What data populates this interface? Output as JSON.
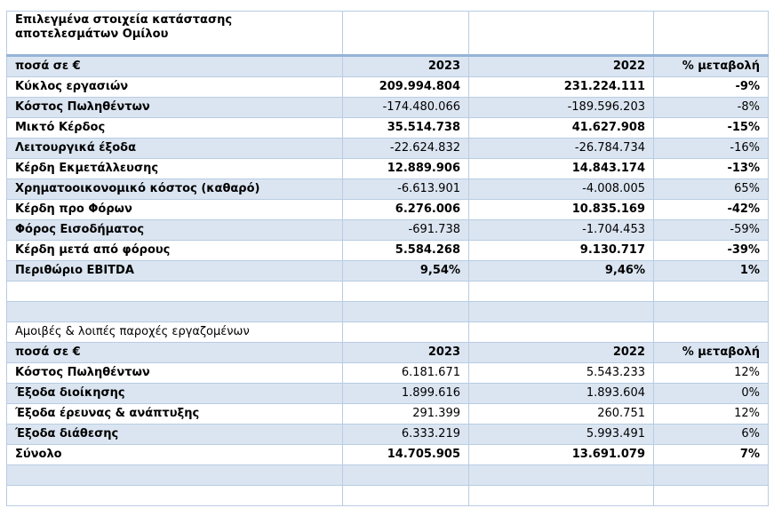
{
  "tables": [
    {
      "title": "Επιλεγμένα στοιχεία κατάστασης αποτελεσμάτων Ομίλου",
      "header": [
        "ποσά σε €",
        "2023",
        "2022",
        "% μεταβολή"
      ],
      "rows": [
        {
          "cells": [
            "Κύκλος εργασιών",
            "209.994.804",
            "231.224.111",
            "-9%"
          ],
          "bold": true
        },
        {
          "cells": [
            "Κόστος Πωληθέντων",
            "-174.480.066",
            "-189.596.203",
            "-8%"
          ],
          "bold": false
        },
        {
          "cells": [
            "Μικτό Κέρδος",
            "35.514.738",
            "41.627.908",
            "-15%"
          ],
          "bold": true
        },
        {
          "cells": [
            "Λειτουργικά έξοδα",
            "-22.624.832",
            "-26.784.734",
            "-16%"
          ],
          "bold": false
        },
        {
          "cells": [
            "Κέρδη Εκμετάλλευσης",
            "12.889.906",
            "14.843.174",
            "-13%"
          ],
          "bold": true
        },
        {
          "cells": [
            "Χρηματοοικονομικό κόστος (καθαρό)",
            "-6.613.901",
            "-4.008.005",
            "65%"
          ],
          "bold": false
        },
        {
          "cells": [
            "Κέρδη προ Φόρων",
            "6.276.006",
            "10.835.169",
            "-42%"
          ],
          "bold": true
        },
        {
          "cells": [
            "Φόρος Εισοδήματος",
            "-691.738",
            "-1.704.453",
            "-59%"
          ],
          "bold": false
        },
        {
          "cells": [
            "Κέρδη μετά από φόρους",
            "5.584.268",
            "9.130.717",
            "-39%"
          ],
          "bold": true
        },
        {
          "cells": [
            "Περιθώριο EBITDA",
            "9,54%",
            "9,46%",
            "1%"
          ],
          "bold": true
        }
      ]
    },
    {
      "title": "Αμοιβές & λοιπές παροχές εργαζομένων",
      "header": [
        "ποσά σε €",
        "2023",
        "2022",
        "% μεταβολή"
      ],
      "rows": [
        {
          "cells": [
            "Κόστος Πωληθέντων",
            "6.181.671",
            "5.543.233",
            "12%"
          ],
          "bold": false
        },
        {
          "cells": [
            "Έξοδα διοίκησης",
            "1.899.616",
            "1.893.604",
            "0%"
          ],
          "bold": false
        },
        {
          "cells": [
            "Έξοδα έρευνας & ανάπτυξης",
            "291.399",
            "260.751",
            "12%"
          ],
          "bold": false
        },
        {
          "cells": [
            "Έξοδα διάθεσης",
            "6.333.219",
            "5.993.491",
            "6%"
          ],
          "bold": false
        },
        {
          "cells": [
            "Σύνολο",
            "14.705.905",
            "13.691.079",
            "7%"
          ],
          "bold": true
        }
      ]
    }
  ]
}
